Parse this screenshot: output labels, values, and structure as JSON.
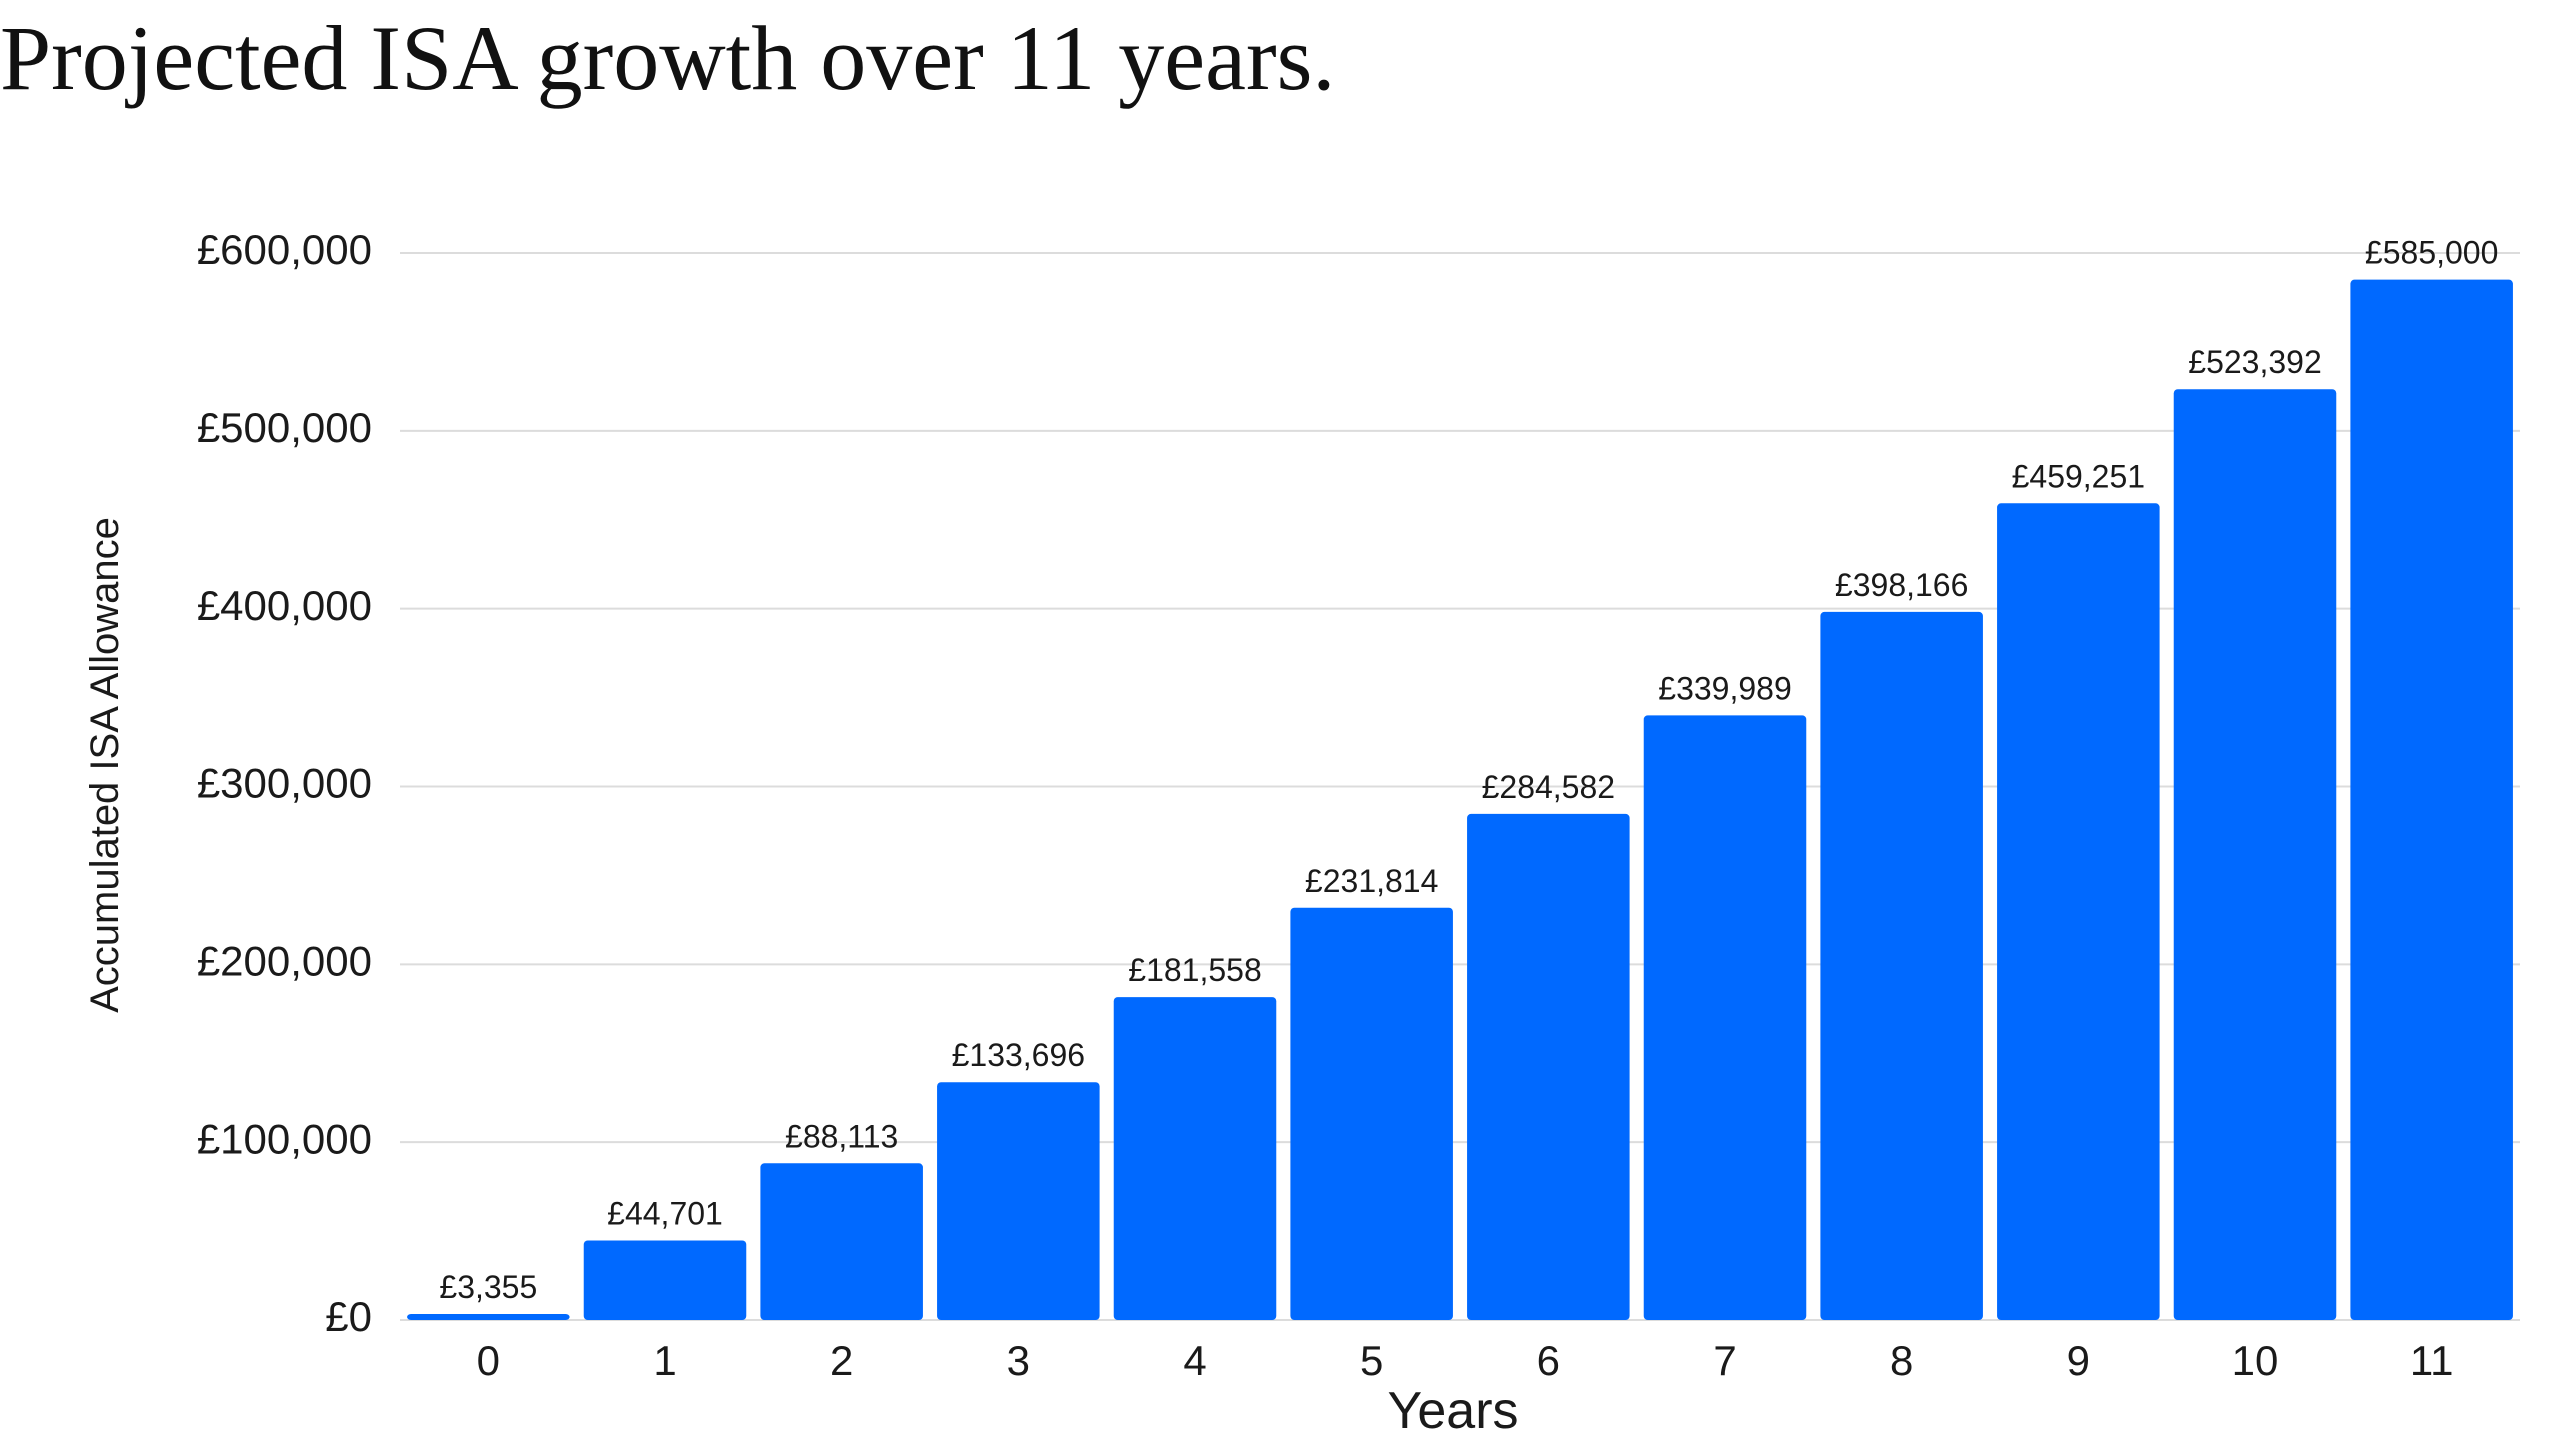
{
  "title": "Projected ISA growth over 11 years.",
  "colors": {
    "bar": "#0069ff",
    "grid": "#dcdcdc",
    "text": "#1a1a1a",
    "background": "#ffffff"
  },
  "chart_data": {
    "type": "bar",
    "title": "Projected ISA growth over 11 years.",
    "xlabel": "Years",
    "ylabel": "Accumulated ISA Allowance",
    "categories": [
      "0",
      "1",
      "2",
      "3",
      "4",
      "5",
      "6",
      "7",
      "8",
      "9",
      "10",
      "11"
    ],
    "values": [
      3355,
      44701,
      88113,
      133696,
      181558,
      231814,
      284582,
      339989,
      398166,
      459251,
      523392,
      585000
    ],
    "data_labels": [
      "£3,355",
      "£44,701",
      "£88,113",
      "£133,696",
      "£181,558",
      "£231,814",
      "£284,582",
      "£339,989",
      "£398,166",
      "£459,251",
      "£523,392",
      "£585,000"
    ],
    "yticks": [
      0,
      100000,
      200000,
      300000,
      400000,
      500000,
      600000
    ],
    "ytick_labels": [
      "£0",
      "£100,000",
      "£200,000",
      "£300,000",
      "£400,000",
      "£500,000",
      "£600,000"
    ],
    "ylim": [
      0,
      600000
    ],
    "grid": true,
    "legend": "none"
  }
}
